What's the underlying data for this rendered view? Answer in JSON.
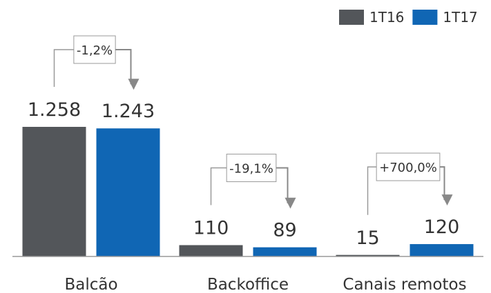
{
  "chart_data": {
    "type": "bar",
    "categories": [
      "Balcão",
      "Backoffice",
      "Canais remotos"
    ],
    "series": [
      {
        "name": "1T16",
        "color": "#53565a",
        "values": [
          1258,
          110,
          15
        ],
        "value_labels": [
          "1.258",
          "110",
          "15"
        ]
      },
      {
        "name": "1T17",
        "color": "#1066b4",
        "values": [
          1243,
          89,
          120
        ],
        "value_labels": [
          "1.243",
          "89",
          "120"
        ]
      }
    ],
    "annotations": [
      "-1,2%",
      "-19,1%",
      "+700,0%"
    ],
    "legend": "top-right"
  }
}
